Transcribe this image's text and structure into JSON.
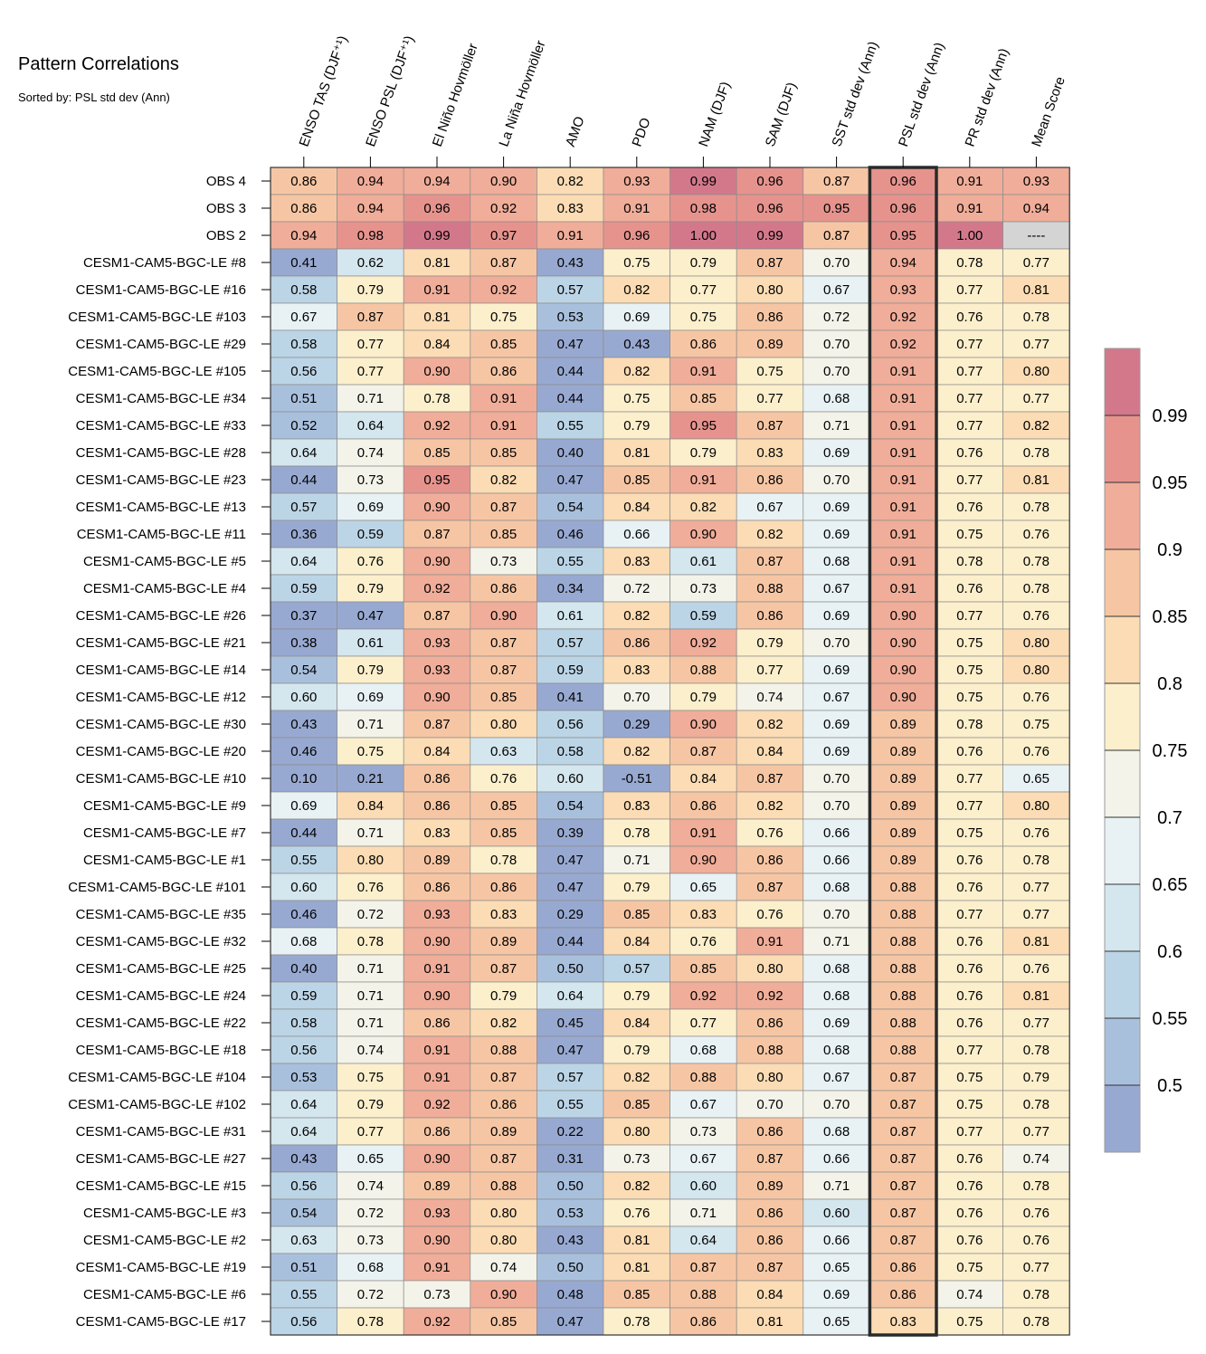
{
  "title": "Pattern Correlations",
  "subtitle": "Sorted by: PSL std dev (Ann)",
  "chart_data": {
    "type": "heatmap",
    "columns": [
      "ENSO TAS (DJF⁺¹)",
      "ENSO PSL (DJF⁺¹)",
      "El Niño Hovmöller",
      "La Niña Hovmöller",
      "AMO",
      "PDO",
      "NAM (DJF)",
      "SAM (DJF)",
      "SST std dev (Ann)",
      "PSL std dev (Ann)",
      "PR std dev (Ann)",
      "Mean Score"
    ],
    "highlighted_column": "PSL std dev (Ann)",
    "rows": [
      {
        "label": "OBS 4",
        "values": [
          "0.86",
          "0.94",
          "0.94",
          "0.90",
          "0.82",
          "0.93",
          "0.99",
          "0.96",
          "0.87",
          "0.96",
          "0.91",
          "0.93"
        ]
      },
      {
        "label": "OBS 3",
        "values": [
          "0.86",
          "0.94",
          "0.96",
          "0.92",
          "0.83",
          "0.91",
          "0.98",
          "0.96",
          "0.95",
          "0.96",
          "0.91",
          "0.94"
        ]
      },
      {
        "label": "OBS 2",
        "values": [
          "0.94",
          "0.98",
          "0.99",
          "0.97",
          "0.91",
          "0.96",
          "1.00",
          "0.99",
          "0.87",
          "0.95",
          "1.00",
          "----"
        ]
      },
      {
        "label": "CESM1-CAM5-BGC-LE #8",
        "values": [
          "0.41",
          "0.62",
          "0.81",
          "0.87",
          "0.43",
          "0.75",
          "0.79",
          "0.87",
          "0.70",
          "0.94",
          "0.78",
          "0.77"
        ]
      },
      {
        "label": "CESM1-CAM5-BGC-LE #16",
        "values": [
          "0.58",
          "0.79",
          "0.91",
          "0.92",
          "0.57",
          "0.82",
          "0.77",
          "0.80",
          "0.67",
          "0.93",
          "0.77",
          "0.81"
        ]
      },
      {
        "label": "CESM1-CAM5-BGC-LE #103",
        "values": [
          "0.67",
          "0.87",
          "0.81",
          "0.75",
          "0.53",
          "0.69",
          "0.75",
          "0.86",
          "0.72",
          "0.92",
          "0.76",
          "0.78"
        ]
      },
      {
        "label": "CESM1-CAM5-BGC-LE #29",
        "values": [
          "0.58",
          "0.77",
          "0.84",
          "0.85",
          "0.47",
          "0.43",
          "0.86",
          "0.89",
          "0.70",
          "0.92",
          "0.77",
          "0.77"
        ]
      },
      {
        "label": "CESM1-CAM5-BGC-LE #105",
        "values": [
          "0.56",
          "0.77",
          "0.90",
          "0.86",
          "0.44",
          "0.82",
          "0.91",
          "0.75",
          "0.70",
          "0.91",
          "0.77",
          "0.80"
        ]
      },
      {
        "label": "CESM1-CAM5-BGC-LE #34",
        "values": [
          "0.51",
          "0.71",
          "0.78",
          "0.91",
          "0.44",
          "0.75",
          "0.85",
          "0.77",
          "0.68",
          "0.91",
          "0.77",
          "0.77"
        ]
      },
      {
        "label": "CESM1-CAM5-BGC-LE #33",
        "values": [
          "0.52",
          "0.64",
          "0.92",
          "0.91",
          "0.55",
          "0.79",
          "0.95",
          "0.87",
          "0.71",
          "0.91",
          "0.77",
          "0.82"
        ]
      },
      {
        "label": "CESM1-CAM5-BGC-LE #28",
        "values": [
          "0.64",
          "0.74",
          "0.85",
          "0.85",
          "0.40",
          "0.81",
          "0.79",
          "0.83",
          "0.69",
          "0.91",
          "0.76",
          "0.78"
        ]
      },
      {
        "label": "CESM1-CAM5-BGC-LE #23",
        "values": [
          "0.44",
          "0.73",
          "0.95",
          "0.82",
          "0.47",
          "0.85",
          "0.91",
          "0.86",
          "0.70",
          "0.91",
          "0.77",
          "0.81"
        ]
      },
      {
        "label": "CESM1-CAM5-BGC-LE #13",
        "values": [
          "0.57",
          "0.69",
          "0.90",
          "0.87",
          "0.54",
          "0.84",
          "0.82",
          "0.67",
          "0.69",
          "0.91",
          "0.76",
          "0.78"
        ]
      },
      {
        "label": "CESM1-CAM5-BGC-LE #11",
        "values": [
          "0.36",
          "0.59",
          "0.87",
          "0.85",
          "0.46",
          "0.66",
          "0.90",
          "0.82",
          "0.69",
          "0.91",
          "0.75",
          "0.76"
        ]
      },
      {
        "label": "CESM1-CAM5-BGC-LE #5",
        "values": [
          "0.64",
          "0.76",
          "0.90",
          "0.73",
          "0.55",
          "0.83",
          "0.61",
          "0.87",
          "0.68",
          "0.91",
          "0.78",
          "0.78"
        ]
      },
      {
        "label": "CESM1-CAM5-BGC-LE #4",
        "values": [
          "0.59",
          "0.79",
          "0.92",
          "0.86",
          "0.34",
          "0.72",
          "0.73",
          "0.88",
          "0.67",
          "0.91",
          "0.76",
          "0.78"
        ]
      },
      {
        "label": "CESM1-CAM5-BGC-LE #26",
        "values": [
          "0.37",
          "0.47",
          "0.87",
          "0.90",
          "0.61",
          "0.82",
          "0.59",
          "0.86",
          "0.69",
          "0.90",
          "0.77",
          "0.76"
        ]
      },
      {
        "label": "CESM1-CAM5-BGC-LE #21",
        "values": [
          "0.38",
          "0.61",
          "0.93",
          "0.87",
          "0.57",
          "0.86",
          "0.92",
          "0.79",
          "0.70",
          "0.90",
          "0.75",
          "0.80"
        ]
      },
      {
        "label": "CESM1-CAM5-BGC-LE #14",
        "values": [
          "0.54",
          "0.79",
          "0.93",
          "0.87",
          "0.59",
          "0.83",
          "0.88",
          "0.77",
          "0.69",
          "0.90",
          "0.75",
          "0.80"
        ]
      },
      {
        "label": "CESM1-CAM5-BGC-LE #12",
        "values": [
          "0.60",
          "0.69",
          "0.90",
          "0.85",
          "0.41",
          "0.70",
          "0.79",
          "0.74",
          "0.67",
          "0.90",
          "0.75",
          "0.76"
        ]
      },
      {
        "label": "CESM1-CAM5-BGC-LE #30",
        "values": [
          "0.43",
          "0.71",
          "0.87",
          "0.80",
          "0.56",
          "0.29",
          "0.90",
          "0.82",
          "0.69",
          "0.89",
          "0.78",
          "0.75"
        ]
      },
      {
        "label": "CESM1-CAM5-BGC-LE #20",
        "values": [
          "0.46",
          "0.75",
          "0.84",
          "0.63",
          "0.58",
          "0.82",
          "0.87",
          "0.84",
          "0.69",
          "0.89",
          "0.76",
          "0.76"
        ]
      },
      {
        "label": "CESM1-CAM5-BGC-LE #10",
        "values": [
          "0.10",
          "0.21",
          "0.86",
          "0.76",
          "0.60",
          "-0.51",
          "0.84",
          "0.87",
          "0.70",
          "0.89",
          "0.77",
          "0.65"
        ]
      },
      {
        "label": "CESM1-CAM5-BGC-LE #9",
        "values": [
          "0.69",
          "0.84",
          "0.86",
          "0.85",
          "0.54",
          "0.83",
          "0.86",
          "0.82",
          "0.70",
          "0.89",
          "0.77",
          "0.80"
        ]
      },
      {
        "label": "CESM1-CAM5-BGC-LE #7",
        "values": [
          "0.44",
          "0.71",
          "0.83",
          "0.85",
          "0.39",
          "0.78",
          "0.91",
          "0.76",
          "0.66",
          "0.89",
          "0.75",
          "0.76"
        ]
      },
      {
        "label": "CESM1-CAM5-BGC-LE #1",
        "values": [
          "0.55",
          "0.80",
          "0.89",
          "0.78",
          "0.47",
          "0.71",
          "0.90",
          "0.86",
          "0.66",
          "0.89",
          "0.76",
          "0.78"
        ]
      },
      {
        "label": "CESM1-CAM5-BGC-LE #101",
        "values": [
          "0.60",
          "0.76",
          "0.86",
          "0.86",
          "0.47",
          "0.79",
          "0.65",
          "0.87",
          "0.68",
          "0.88",
          "0.76",
          "0.77"
        ]
      },
      {
        "label": "CESM1-CAM5-BGC-LE #35",
        "values": [
          "0.46",
          "0.72",
          "0.93",
          "0.83",
          "0.29",
          "0.85",
          "0.83",
          "0.76",
          "0.70",
          "0.88",
          "0.77",
          "0.77"
        ]
      },
      {
        "label": "CESM1-CAM5-BGC-LE #32",
        "values": [
          "0.68",
          "0.78",
          "0.90",
          "0.89",
          "0.44",
          "0.84",
          "0.76",
          "0.91",
          "0.71",
          "0.88",
          "0.76",
          "0.81"
        ]
      },
      {
        "label": "CESM1-CAM5-BGC-LE #25",
        "values": [
          "0.40",
          "0.71",
          "0.91",
          "0.87",
          "0.50",
          "0.57",
          "0.85",
          "0.80",
          "0.68",
          "0.88",
          "0.76",
          "0.76"
        ]
      },
      {
        "label": "CESM1-CAM5-BGC-LE #24",
        "values": [
          "0.59",
          "0.71",
          "0.90",
          "0.79",
          "0.64",
          "0.79",
          "0.92",
          "0.92",
          "0.68",
          "0.88",
          "0.76",
          "0.81"
        ]
      },
      {
        "label": "CESM1-CAM5-BGC-LE #22",
        "values": [
          "0.58",
          "0.71",
          "0.86",
          "0.82",
          "0.45",
          "0.84",
          "0.77",
          "0.86",
          "0.69",
          "0.88",
          "0.76",
          "0.77"
        ]
      },
      {
        "label": "CESM1-CAM5-BGC-LE #18",
        "values": [
          "0.56",
          "0.74",
          "0.91",
          "0.88",
          "0.47",
          "0.79",
          "0.68",
          "0.88",
          "0.68",
          "0.88",
          "0.77",
          "0.78"
        ]
      },
      {
        "label": "CESM1-CAM5-BGC-LE #104",
        "values": [
          "0.53",
          "0.75",
          "0.91",
          "0.87",
          "0.57",
          "0.82",
          "0.88",
          "0.80",
          "0.67",
          "0.87",
          "0.75",
          "0.79"
        ]
      },
      {
        "label": "CESM1-CAM5-BGC-LE #102",
        "values": [
          "0.64",
          "0.79",
          "0.92",
          "0.86",
          "0.55",
          "0.85",
          "0.67",
          "0.70",
          "0.70",
          "0.87",
          "0.75",
          "0.78"
        ]
      },
      {
        "label": "CESM1-CAM5-BGC-LE #31",
        "values": [
          "0.64",
          "0.77",
          "0.86",
          "0.89",
          "0.22",
          "0.80",
          "0.73",
          "0.86",
          "0.68",
          "0.87",
          "0.77",
          "0.77"
        ]
      },
      {
        "label": "CESM1-CAM5-BGC-LE #27",
        "values": [
          "0.43",
          "0.65",
          "0.90",
          "0.87",
          "0.31",
          "0.73",
          "0.67",
          "0.87",
          "0.66",
          "0.87",
          "0.76",
          "0.74"
        ]
      },
      {
        "label": "CESM1-CAM5-BGC-LE #15",
        "values": [
          "0.56",
          "0.74",
          "0.89",
          "0.88",
          "0.50",
          "0.82",
          "0.60",
          "0.89",
          "0.71",
          "0.87",
          "0.76",
          "0.78"
        ]
      },
      {
        "label": "CESM1-CAM5-BGC-LE #3",
        "values": [
          "0.54",
          "0.72",
          "0.93",
          "0.80",
          "0.53",
          "0.76",
          "0.71",
          "0.86",
          "0.60",
          "0.87",
          "0.76",
          "0.76"
        ]
      },
      {
        "label": "CESM1-CAM5-BGC-LE #2",
        "values": [
          "0.63",
          "0.73",
          "0.90",
          "0.80",
          "0.43",
          "0.81",
          "0.64",
          "0.86",
          "0.66",
          "0.87",
          "0.76",
          "0.76"
        ]
      },
      {
        "label": "CESM1-CAM5-BGC-LE #19",
        "values": [
          "0.51",
          "0.68",
          "0.91",
          "0.74",
          "0.50",
          "0.81",
          "0.87",
          "0.87",
          "0.65",
          "0.86",
          "0.75",
          "0.77"
        ]
      },
      {
        "label": "CESM1-CAM5-BGC-LE #6",
        "values": [
          "0.55",
          "0.72",
          "0.73",
          "0.90",
          "0.48",
          "0.85",
          "0.88",
          "0.84",
          "0.69",
          "0.86",
          "0.74",
          "0.78"
        ]
      },
      {
        "label": "CESM1-CAM5-BGC-LE #17",
        "values": [
          "0.56",
          "0.78",
          "0.92",
          "0.85",
          "0.47",
          "0.78",
          "0.86",
          "0.81",
          "0.65",
          "0.83",
          "0.75",
          "0.78"
        ]
      }
    ],
    "colorbar": {
      "labels": [
        "0.99",
        "0.95",
        "0.9",
        "0.85",
        "0.8",
        "0.75",
        "0.7",
        "0.65",
        "0.6",
        "0.55",
        "0.5"
      ],
      "levels": [
        0.5,
        0.55,
        0.6,
        0.65,
        0.7,
        0.75,
        0.8,
        0.85,
        0.9,
        0.95,
        0.99
      ],
      "colors": [
        "#98a9d1",
        "#a9c0dd",
        "#bcd5e6",
        "#d4e6ee",
        "#e8f2f5",
        "#f3f3ea",
        "#fcefcc",
        "#fbdcb4",
        "#f6c6a4",
        "#f0ad99",
        "#e6938e",
        "#d3788b"
      ],
      "missing_color": "#d4d4d4"
    }
  }
}
